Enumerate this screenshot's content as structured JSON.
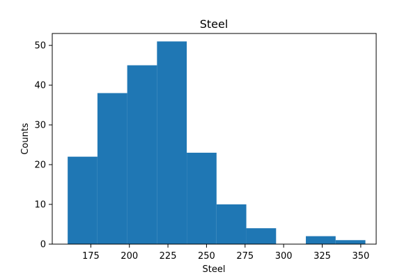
{
  "chart_data": {
    "type": "bar",
    "title": "Steel",
    "xlabel": "Steel",
    "ylabel": "Counts",
    "xlim": [
      150,
      360
    ],
    "ylim": [
      0,
      53
    ],
    "bin_edges": [
      160,
      179.3,
      198.6,
      217.9,
      237.2,
      256.5,
      275.8,
      295.1,
      314.4,
      333.7,
      353
    ],
    "values": [
      22,
      38,
      45,
      51,
      23,
      10,
      4,
      0,
      2,
      1
    ],
    "xticks": [
      175,
      200,
      225,
      250,
      275,
      300,
      325,
      350
    ],
    "yticks": [
      0,
      10,
      20,
      30,
      40,
      50
    ],
    "bar_color": "#1f77b4",
    "grid": false,
    "legend": "none"
  }
}
